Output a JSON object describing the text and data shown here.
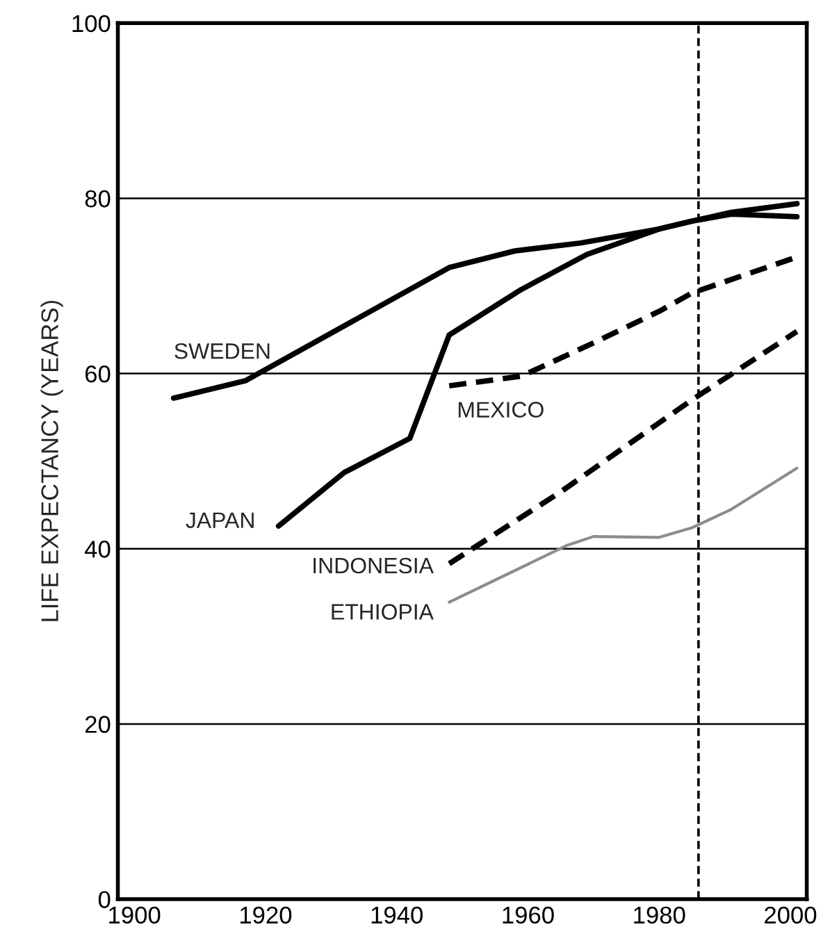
{
  "chart_data": {
    "type": "line",
    "ylabel": "LIFE EXPECTANCY (YEARS)",
    "xlim": [
      1897.5,
      2002.5
    ],
    "xticks": [
      1900,
      1920,
      1940,
      1960,
      1980,
      2000
    ],
    "ylim": [
      0,
      100
    ],
    "yticks": [
      0,
      20,
      40,
      60,
      80,
      100
    ],
    "grid": "y",
    "marker": "none",
    "series": [
      {
        "name": "SWEDEN",
        "color": "#000000",
        "line_style": "solid",
        "x": [
          1906,
          1917,
          1948,
          1958,
          1968,
          1980,
          1985,
          1991,
          2001
        ],
        "values": [
          57.2,
          59.2,
          72.1,
          74.0,
          74.9,
          76.5,
          77.4,
          78.4,
          79.4
        ]
      },
      {
        "name": "JAPAN",
        "color": "#000000",
        "line_style": "solid",
        "x": [
          1922,
          1932,
          1942,
          1948,
          1959,
          1969,
          1980,
          1985,
          1991,
          2001
        ],
        "values": [
          42.6,
          48.7,
          52.6,
          64.4,
          69.6,
          73.6,
          76.5,
          77.4,
          78.2,
          77.9
        ]
      },
      {
        "name": "MEXICO",
        "color": "#000000",
        "line_style": "dashed",
        "x": [
          1948,
          1959,
          1970,
          1980,
          1985,
          2001
        ],
        "values": [
          58.6,
          59.7,
          63.5,
          67.1,
          69.2,
          73.3
        ]
      },
      {
        "name": "INDONESIA",
        "color": "#000000",
        "line_style": "dashed",
        "x": [
          1948,
          1965,
          1985,
          2001
        ],
        "values": [
          38.3,
          46.5,
          57.0,
          64.8
        ]
      },
      {
        "name": "ETHIOPIA",
        "color": "#8c8c8c",
        "line_style": "solid",
        "x": [
          1948,
          1966,
          1970,
          1980,
          1985,
          1991,
          2001
        ],
        "values": [
          33.9,
          40.4,
          41.4,
          41.3,
          42.4,
          44.5,
          49.2
        ]
      }
    ],
    "ref_lines": [
      {
        "axis": "x",
        "value": 1986,
        "color": "#000000",
        "line_style": "dashed"
      }
    ]
  }
}
